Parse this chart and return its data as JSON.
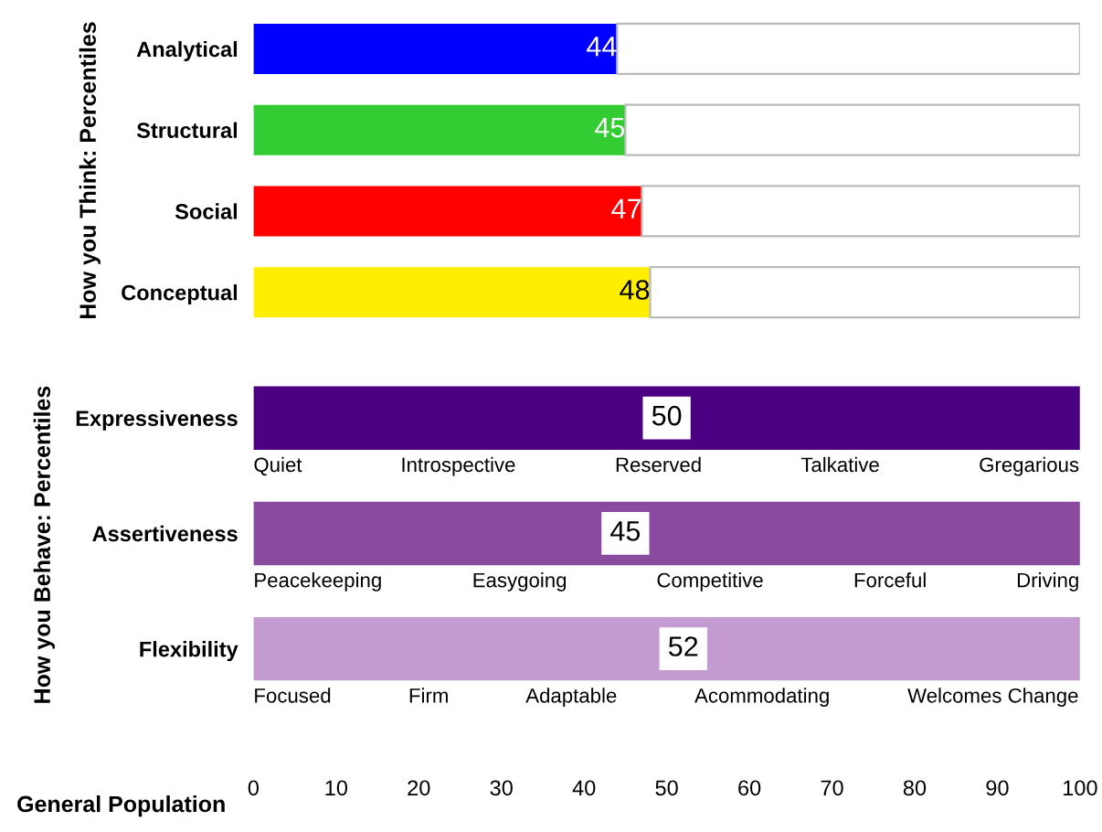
{
  "chart_data": [
    {
      "type": "bar",
      "orientation": "horizontal",
      "stacked": true,
      "ylabel": "How you Think: Percentiles",
      "categories": [
        "Analytical",
        "Structural",
        "Social",
        "Conceptual"
      ],
      "series": [
        {
          "colors": [
            "#0000ff",
            "#33cc33",
            "#ff0000",
            "#ffee00"
          ],
          "values": [
            44,
            45,
            47,
            48
          ],
          "value_labels": [
            "44",
            "45",
            "47",
            "48"
          ]
        },
        {
          "color": "#ffffff",
          "values": [
            56,
            55,
            53,
            52
          ]
        }
      ],
      "xlim": [
        0,
        100
      ],
      "tick_labels": false,
      "grid": false
    },
    {
      "type": "bar",
      "orientation": "horizontal",
      "ylabel": "How you Behave: Percentiles",
      "xlabel": "General Population",
      "categories": [
        "Expressiveness",
        "Assertiveness",
        "Flexibility"
      ],
      "series": [
        {
          "type": "bar",
          "colors": [
            "#4b0082",
            "#8a4aa0",
            "#c39bd0"
          ],
          "values": [
            100,
            100,
            100
          ]
        },
        {
          "type": "scatter",
          "color": "#ffffff",
          "values": [
            50,
            45,
            52
          ],
          "value_labels": [
            "50",
            "45",
            "52"
          ]
        }
      ],
      "annotations": [
        "Quiet",
        "Introspective",
        "Reserved",
        "Talkative",
        "Gregarious",
        "Peacekeeping",
        "Easygoing",
        "Competitive",
        "Forceful",
        "Driving",
        "Focused",
        "Firm",
        "Adaptable",
        "Acommodating",
        "Welcomes Change"
      ],
      "xlim": [
        0,
        100
      ],
      "xticks": [
        0,
        10,
        20,
        30,
        40,
        50,
        60,
        70,
        80,
        90,
        100
      ],
      "tick_labels": "x",
      "grid": false
    }
  ]
}
